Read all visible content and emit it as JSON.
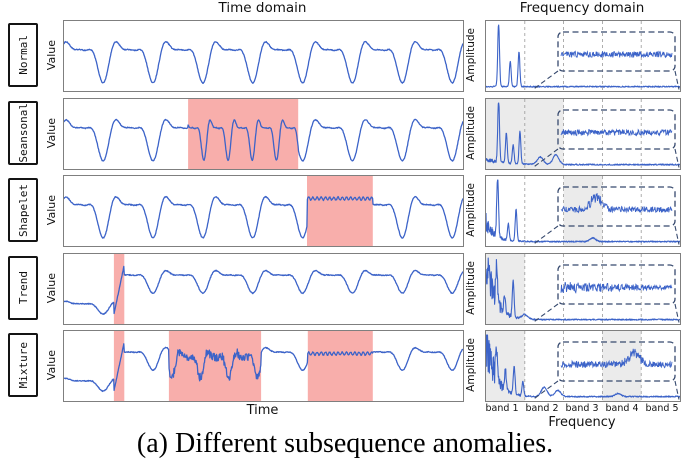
{
  "figure": {
    "time_title": "Time domain",
    "freq_title": "Frequency domain",
    "caption": "(a) Different subsequence anomalies.",
    "time_xlabel": "Time",
    "freq_xlabel": "Frequency",
    "value_ylabel": "Value",
    "amplitude_ylabel": "Amplitude",
    "band_labels": [
      "band 1",
      "band 2",
      "band 3",
      "band 4",
      "band 5"
    ]
  },
  "colors": {
    "series_line": "#3c63c8",
    "anomaly_fill": "#f8aeab",
    "band_shade": "#ebebeb",
    "gridline": "#999999",
    "inset_stroke": "#36496e",
    "panel_border": "#7f7f7f",
    "label_box_border": "#141414"
  },
  "chart_data": {
    "type": "line",
    "description": "Five stacked rows, each with a time-domain series (left) and its frequency spectrum (right); red spans mark anomalous subsequences, gray bands mark affected frequency bands, dashed box is a zoom inset of the noise floor.",
    "rows": [
      {
        "label": "Normal",
        "time": {
          "pattern": "periodic",
          "anomaly_regions": []
        },
        "freq": {
          "shaded_bands": [],
          "decay": 0,
          "left_floor": 0,
          "spikes": [
            [
              0.065,
              1.0
            ],
            [
              0.125,
              0.4
            ],
            [
              0.17,
              0.56
            ]
          ],
          "bumps": [],
          "inset": {
            "noise": 0.5,
            "slope": false,
            "bump": null
          }
        }
      },
      {
        "label": "Seansonal",
        "time": {
          "pattern": "periodic",
          "anomaly_regions": [
            {
              "x0": 0.311,
              "x1": 0.587,
              "type": "freq-double"
            }
          ]
        },
        "freq": {
          "shaded_bands": [
            0,
            1
          ],
          "decay": 0,
          "left_floor": 0.08,
          "spikes": [
            [
              0.065,
              1.0
            ],
            [
              0.105,
              0.48
            ],
            [
              0.14,
              0.3
            ],
            [
              0.175,
              0.52
            ]
          ],
          "bumps": [
            [
              0.28,
              0.12
            ],
            [
              0.36,
              0.16
            ]
          ],
          "inset": {
            "noise": 0.5,
            "slope": false,
            "bump": null
          }
        }
      },
      {
        "label": "Shapelet",
        "time": {
          "pattern": "periodic",
          "anomaly_regions": [
            {
              "x0": 0.609,
              "x1": 0.774,
              "type": "plateau"
            }
          ]
        },
        "freq": {
          "shaded_bands": [
            2
          ],
          "decay": 0.3,
          "left_floor": 0,
          "spikes": [
            [
              0.06,
              1.0
            ],
            [
              0.115,
              0.26
            ],
            [
              0.155,
              0.5
            ]
          ],
          "bumps": [
            [
              0.55,
              0.06
            ]
          ],
          "inset": {
            "noise": 0.5,
            "slope": false,
            "bump": {
              "center": 0.32,
              "height": 1.0
            }
          }
        }
      },
      {
        "label": "Trend",
        "time": {
          "pattern": "level-shift",
          "anomaly_regions": [
            {
              "x0": 0.125,
              "x1": 0.151,
              "type": "jump"
            }
          ]
        },
        "freq": {
          "shaded_bands": [
            0
          ],
          "decay": 1.0,
          "left_floor": 0,
          "spikes": [
            [
              0.055,
              0.55
            ],
            [
              0.095,
              0.28
            ],
            [
              0.14,
              0.58
            ]
          ],
          "bumps": [
            [
              0.2,
              0.07
            ]
          ],
          "inset": {
            "noise": 0.8,
            "slope": true,
            "bump": null
          }
        }
      },
      {
        "label": "Mixture",
        "time": {
          "pattern": "level-shift",
          "anomaly_regions": [
            {
              "x0": 0.125,
              "x1": 0.151,
              "type": "jump"
            },
            {
              "x0": 0.263,
              "x1": 0.494,
              "type": "noisy"
            },
            {
              "x0": 0.611,
              "x1": 0.774,
              "type": "plateau"
            }
          ]
        },
        "freq": {
          "shaded_bands": [
            0,
            3
          ],
          "decay": 1.0,
          "left_floor": 0,
          "spikes": [
            [
              0.055,
              0.5
            ],
            [
              0.1,
              0.32
            ],
            [
              0.145,
              0.45
            ],
            [
              0.19,
              0.22
            ]
          ],
          "bumps": [
            [
              0.3,
              0.15
            ],
            [
              0.37,
              0.1
            ],
            [
              0.68,
              0.05
            ]
          ],
          "inset": {
            "noise": 0.6,
            "slope": false,
            "bump": {
              "center": 0.66,
              "height": 0.9
            }
          }
        }
      }
    ]
  }
}
